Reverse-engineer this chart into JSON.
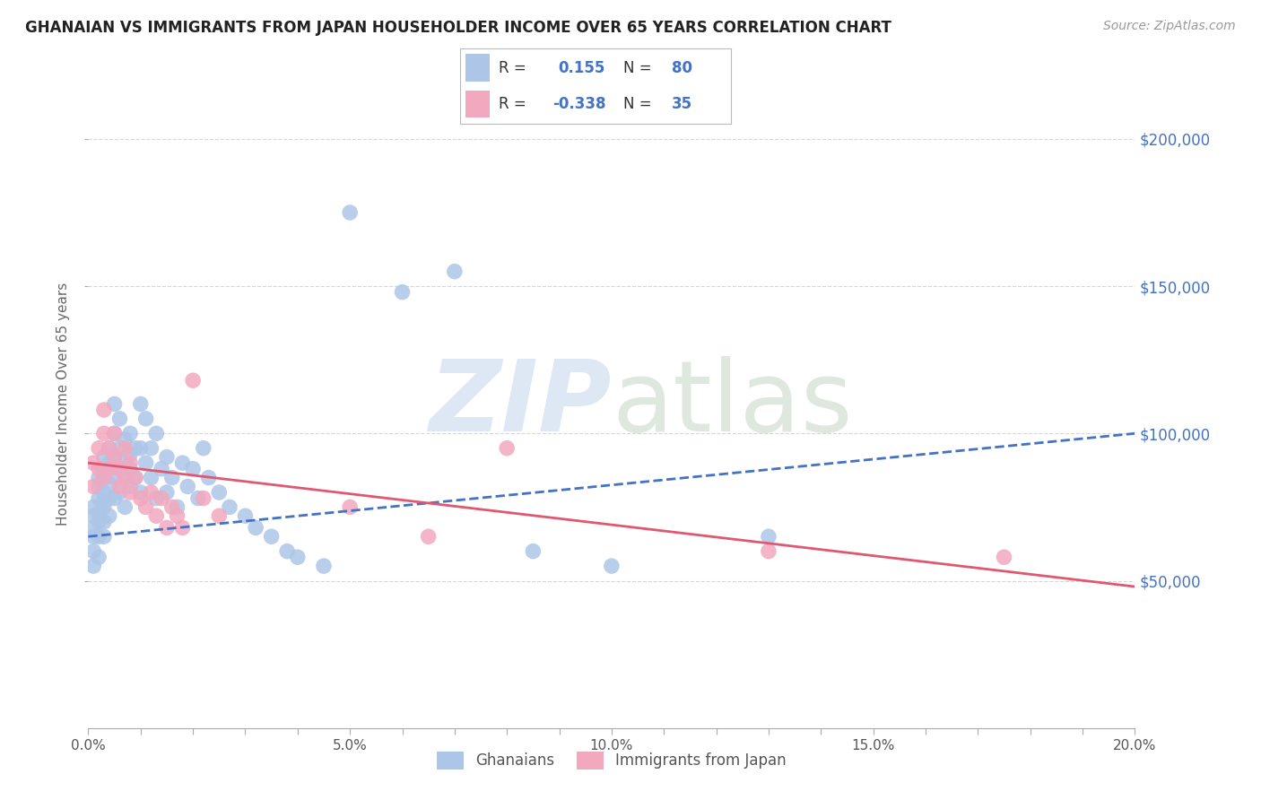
{
  "title": "GHANAIAN VS IMMIGRANTS FROM JAPAN HOUSEHOLDER INCOME OVER 65 YEARS CORRELATION CHART",
  "source": "Source: ZipAtlas.com",
  "ylabel": "Householder Income Over 65 years",
  "xlim": [
    0.0,
    0.2
  ],
  "ylim": [
    0,
    220000
  ],
  "xtick_labels": [
    "0.0%",
    "",
    "",
    "",
    "",
    "5.0%",
    "",
    "",
    "",
    "",
    "10.0%",
    "",
    "",
    "",
    "",
    "15.0%",
    "",
    "",
    "",
    "",
    "20.0%"
  ],
  "xtick_vals": [
    0.0,
    0.01,
    0.02,
    0.03,
    0.04,
    0.05,
    0.06,
    0.07,
    0.08,
    0.09,
    0.1,
    0.11,
    0.12,
    0.13,
    0.14,
    0.15,
    0.16,
    0.17,
    0.18,
    0.19,
    0.2
  ],
  "ytick_vals": [
    50000,
    100000,
    150000,
    200000
  ],
  "ytick_labels": [
    "$50,000",
    "$100,000",
    "$150,000",
    "$200,000"
  ],
  "ghanaian_color": "#adc6e8",
  "japan_color": "#f2a8be",
  "ghanaian_line_color": "#4472c4",
  "japan_line_color": "#e05870",
  "legend_text_color": "#4472c4",
  "R_ghana": 0.155,
  "N_ghana": 80,
  "R_japan": -0.338,
  "N_japan": 35,
  "ghana_line_x0": 0.0,
  "ghana_line_y0": 65000,
  "ghana_line_x1": 0.2,
  "ghana_line_y1": 100000,
  "japan_line_x0": 0.0,
  "japan_line_y0": 90000,
  "japan_line_x1": 0.2,
  "japan_line_y1": 48000,
  "ghanaian_x": [
    0.001,
    0.001,
    0.001,
    0.001,
    0.001,
    0.001,
    0.002,
    0.002,
    0.002,
    0.002,
    0.002,
    0.002,
    0.002,
    0.003,
    0.003,
    0.003,
    0.003,
    0.003,
    0.003,
    0.003,
    0.003,
    0.004,
    0.004,
    0.004,
    0.004,
    0.004,
    0.004,
    0.005,
    0.005,
    0.005,
    0.005,
    0.005,
    0.006,
    0.006,
    0.006,
    0.006,
    0.007,
    0.007,
    0.007,
    0.007,
    0.008,
    0.008,
    0.008,
    0.008,
    0.009,
    0.009,
    0.01,
    0.01,
    0.01,
    0.011,
    0.011,
    0.012,
    0.012,
    0.013,
    0.013,
    0.014,
    0.015,
    0.015,
    0.016,
    0.017,
    0.018,
    0.019,
    0.02,
    0.021,
    0.022,
    0.023,
    0.025,
    0.027,
    0.03,
    0.032,
    0.035,
    0.038,
    0.04,
    0.045,
    0.05,
    0.06,
    0.07,
    0.085,
    0.1,
    0.13
  ],
  "ghanaian_y": [
    65000,
    72000,
    68000,
    60000,
    55000,
    75000,
    70000,
    78000,
    65000,
    82000,
    58000,
    73000,
    85000,
    88000,
    75000,
    80000,
    70000,
    65000,
    92000,
    85000,
    77000,
    90000,
    83000,
    78000,
    95000,
    72000,
    88000,
    100000,
    92000,
    85000,
    78000,
    110000,
    95000,
    88000,
    105000,
    80000,
    98000,
    90000,
    85000,
    75000,
    100000,
    93000,
    88000,
    82000,
    95000,
    85000,
    110000,
    95000,
    80000,
    105000,
    90000,
    95000,
    85000,
    100000,
    78000,
    88000,
    92000,
    80000,
    85000,
    75000,
    90000,
    82000,
    88000,
    78000,
    95000,
    85000,
    80000,
    75000,
    72000,
    68000,
    65000,
    60000,
    58000,
    55000,
    175000,
    148000,
    155000,
    60000,
    55000,
    65000
  ],
  "japan_x": [
    0.001,
    0.001,
    0.002,
    0.002,
    0.003,
    0.003,
    0.003,
    0.004,
    0.004,
    0.005,
    0.005,
    0.006,
    0.006,
    0.007,
    0.007,
    0.008,
    0.008,
    0.009,
    0.01,
    0.011,
    0.012,
    0.013,
    0.014,
    0.015,
    0.016,
    0.017,
    0.018,
    0.02,
    0.022,
    0.025,
    0.05,
    0.065,
    0.08,
    0.13,
    0.175
  ],
  "japan_y": [
    90000,
    82000,
    88000,
    95000,
    100000,
    85000,
    108000,
    95000,
    88000,
    92000,
    100000,
    88000,
    82000,
    95000,
    85000,
    90000,
    80000,
    85000,
    78000,
    75000,
    80000,
    72000,
    78000,
    68000,
    75000,
    72000,
    68000,
    118000,
    78000,
    72000,
    75000,
    65000,
    95000,
    60000,
    58000
  ]
}
